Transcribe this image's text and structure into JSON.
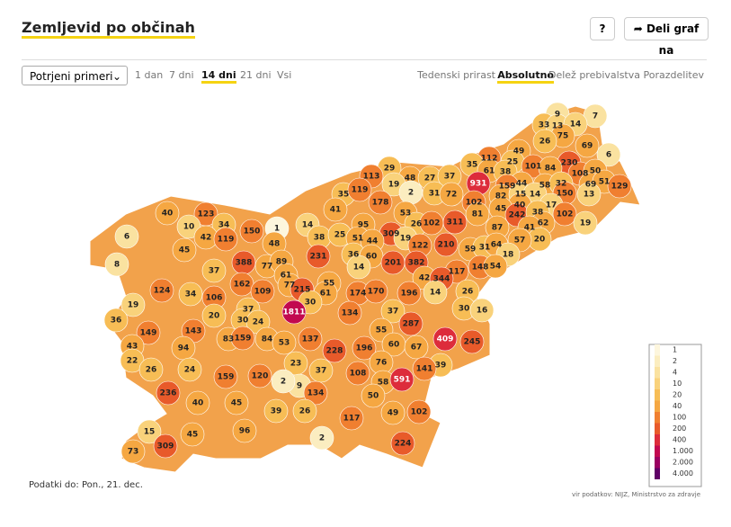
{
  "header": {
    "title": "Zemljevid po občinah",
    "help": "?",
    "share": "Deli graf na"
  },
  "controls": {
    "measure": "Potrjeni primeri",
    "periods": [
      "1 dan",
      "7 dni",
      "14 dni",
      "21 dni",
      "Vsi"
    ],
    "active_period": 2,
    "views": [
      "Tedenski prirast",
      "Absolutno",
      "Delež prebivalstva",
      "Porazdelitev"
    ],
    "active_view": 1
  },
  "map": {
    "values": [
      9,
      7,
      33,
      13,
      14,
      75,
      26,
      69,
      49,
      6,
      230,
      112,
      25,
      101,
      84,
      108,
      50,
      35,
      61,
      38,
      931,
      44,
      159,
      58,
      32,
      69,
      51,
      129,
      82,
      15,
      14,
      150,
      13,
      102,
      40,
      17,
      45,
      242,
      38,
      102,
      81,
      62,
      19,
      41,
      20,
      57,
      87,
      59,
      31,
      64,
      18,
      148,
      54,
      29,
      48,
      27,
      37,
      113,
      19,
      2,
      31,
      72,
      35,
      119,
      178,
      41,
      311,
      53,
      26,
      102,
      95,
      309,
      19,
      122,
      210,
      14,
      38,
      25,
      51,
      44,
      36,
      60,
      201,
      382,
      117,
      42,
      344,
      14,
      231,
      1,
      40,
      123,
      10,
      34,
      150,
      42,
      119,
      6,
      45,
      48,
      8,
      388,
      77,
      89,
      37,
      61,
      162,
      124,
      34,
      109,
      77,
      215,
      55,
      174,
      170,
      196,
      14,
      26,
      106,
      61,
      30,
      19,
      37,
      20,
      1811,
      30,
      24,
      134,
      37,
      30,
      16,
      36,
      287,
      55,
      149,
      143,
      83,
      159,
      84,
      53,
      137,
      409,
      245,
      43,
      94,
      228,
      196,
      60,
      67,
      22,
      76,
      23,
      39,
      141,
      26,
      24,
      159,
      120,
      37,
      108,
      9,
      58,
      591,
      2,
      236,
      134,
      50,
      40,
      45,
      39,
      26,
      49,
      102,
      117,
      96,
      15,
      45,
      2,
      224,
      309,
      73
    ]
  },
  "legend": {
    "ticks": [
      1,
      2,
      4,
      10,
      20,
      40,
      100,
      200,
      400,
      {
        "value": 1000,
        "label": "1.000"
      },
      {
        "value": 2000,
        "label": "2.000"
      },
      {
        "value": 4000,
        "label": "4.000"
      }
    ],
    "colors": [
      "#fdf6dd",
      "#fbedc0",
      "#fae2a0",
      "#f9d27b",
      "#f7bd55",
      "#f5a742",
      "#f07f30",
      "#e85a2a",
      "#dd2c3b",
      "#c2084f",
      "#9a0060",
      "#5f0066"
    ]
  },
  "footer": {
    "date": "Podatki do: Pon., 21. dec.",
    "source": "vir podatkov: NIJZ, Ministrstvo za zdravje"
  }
}
